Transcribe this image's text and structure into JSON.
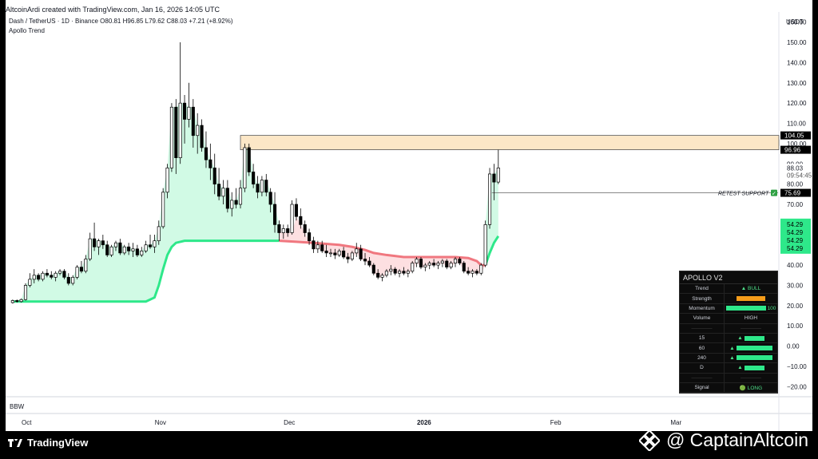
{
  "header": {
    "attribution": "AltcoinArdi created with TradingView.com, Jan 16, 2026 14:05 UTC",
    "symbol_line": "Dash / TetherUS · 1D · Binance",
    "ohlc": "O80.81 H96.85 L79.62 C88.03 +7.21 (+8.92%)",
    "indicator": "Apollo Trend",
    "lower_pane": "BBW"
  },
  "footer": {
    "brand": "TradingView",
    "watermark": "@ CaptainAltcoin"
  },
  "annotations": {
    "retest": "RETEST SUPPORT",
    "check": "✓"
  },
  "price_badges": {
    "zone_top": "104.05",
    "zone_bottom": "96.96",
    "current_price": "88.03",
    "countdown": "09:54:45",
    "support": "75.69",
    "trend_level": "54.29"
  },
  "apollo": {
    "title": "APOLLO V2",
    "rows": [
      {
        "label": "Trend",
        "value": "▲ BULL"
      },
      {
        "label": "Strength",
        "value": "",
        "bar_color": "#f59c1a",
        "bar_fraction": 0.72
      },
      {
        "label": "Momentum",
        "value": "100",
        "bar_color": "#2ee88a",
        "bar_fraction": 1.0
      },
      {
        "label": "Volume",
        "value": "HIGH"
      },
      {
        "label": "",
        "value": ""
      },
      {
        "label": "15",
        "value": "▲",
        "bar_color": "#2ee88a",
        "bar_fraction": 0.5
      },
      {
        "label": "60",
        "value": "▲",
        "bar_color": "#2ee88a",
        "bar_fraction": 0.9
      },
      {
        "label": "240",
        "value": "▲",
        "bar_color": "#2ee88a",
        "bar_fraction": 0.9
      },
      {
        "label": "D",
        "value": "▲",
        "bar_color": "#2ee88a",
        "bar_fraction": 0.5
      },
      {
        "label": "",
        "value": ""
      },
      {
        "label": "Signal",
        "value": "🟢 LONG"
      }
    ]
  },
  "chart_data": {
    "type": "candlestick",
    "currency": "USDT",
    "ylim": [
      -25,
      165
    ],
    "y_ticks": [
      160,
      150,
      140,
      130,
      120,
      110,
      100,
      90,
      80,
      70,
      60,
      50,
      40,
      30,
      20,
      10,
      0,
      -10,
      -20
    ],
    "y_tick_labels": [
      "160.00",
      "150.00",
      "140.00",
      "130.00",
      "120.00",
      "110.00",
      "100.00",
      "90.00",
      "80.00",
      "70.00",
      "60.00",
      "50.00",
      "40.00",
      "30.00",
      "20.00",
      "10.00",
      "0.00",
      "−10.00",
      "−20.00"
    ],
    "x_labels": [
      {
        "label": "Oct",
        "day": 0
      },
      {
        "label": "Nov",
        "day": 31
      },
      {
        "label": "Dec",
        "day": 61
      },
      {
        "label": "2026",
        "day": 92,
        "bold": true
      },
      {
        "label": "Feb",
        "day": 123
      },
      {
        "label": "Mar",
        "day": 151
      }
    ],
    "x_range_days": [
      -3,
      167
    ],
    "resistance_zone": [
      96.96,
      104.05
    ],
    "support_level": 75.69,
    "candles": [
      [
        -3,
        21.5,
        23,
        21,
        22.5
      ],
      [
        -2,
        22.5,
        23,
        21.5,
        22
      ],
      [
        -1,
        22,
        23.5,
        21.5,
        23
      ],
      [
        0,
        23,
        31,
        22.5,
        30
      ],
      [
        1,
        30,
        36,
        29,
        33
      ],
      [
        2,
        33,
        38,
        31,
        35
      ],
      [
        3,
        35,
        36,
        32,
        33
      ],
      [
        4,
        33,
        37,
        32,
        36
      ],
      [
        5,
        36,
        38,
        34,
        35
      ],
      [
        6,
        35,
        37,
        33,
        34
      ],
      [
        7,
        34,
        37,
        32,
        36
      ],
      [
        8,
        36,
        38,
        35,
        37
      ],
      [
        9,
        37,
        38,
        33,
        34
      ],
      [
        10,
        34,
        36,
        30,
        31
      ],
      [
        11,
        31,
        35,
        30,
        34
      ],
      [
        12,
        34,
        40,
        33,
        39
      ],
      [
        13,
        39,
        42,
        36,
        37
      ],
      [
        14,
        37,
        45,
        36,
        43
      ],
      [
        15,
        43,
        56,
        42,
        53
      ],
      [
        16,
        53,
        61,
        47,
        49
      ],
      [
        17,
        49,
        53,
        45,
        52
      ],
      [
        18,
        52,
        55,
        48,
        50
      ],
      [
        19,
        50,
        52,
        44,
        45
      ],
      [
        20,
        45,
        50,
        44,
        49
      ],
      [
        21,
        49,
        52,
        47,
        51
      ],
      [
        22,
        51,
        53,
        45,
        46
      ],
      [
        23,
        46,
        50,
        45,
        49
      ],
      [
        24,
        49,
        51,
        45,
        47
      ],
      [
        25,
        47,
        51,
        44,
        48
      ],
      [
        26,
        48,
        50,
        44,
        45
      ],
      [
        27,
        45,
        49,
        44,
        47
      ],
      [
        28,
        47,
        52,
        46,
        50
      ],
      [
        29,
        50,
        55,
        48,
        49
      ],
      [
        30,
        49,
        55,
        46,
        52
      ],
      [
        31,
        52,
        62,
        50,
        59
      ],
      [
        32,
        59,
        78,
        58,
        76
      ],
      [
        33,
        76,
        90,
        73,
        88
      ],
      [
        34,
        88,
        120,
        86,
        118
      ],
      [
        35,
        118,
        122,
        85,
        93
      ],
      [
        36,
        93,
        150,
        90,
        120
      ],
      [
        37,
        120,
        124,
        100,
        112
      ],
      [
        38,
        112,
        130,
        108,
        118
      ],
      [
        39,
        118,
        122,
        98,
        104
      ],
      [
        40,
        104,
        115,
        95,
        109
      ],
      [
        41,
        109,
        112,
        96,
        98
      ],
      [
        42,
        98,
        106,
        88,
        92
      ],
      [
        43,
        92,
        100,
        82,
        88
      ],
      [
        44,
        88,
        95,
        75,
        80
      ],
      [
        45,
        80,
        88,
        72,
        74
      ],
      [
        46,
        74,
        82,
        70,
        78
      ],
      [
        47,
        78,
        82,
        66,
        68
      ],
      [
        48,
        68,
        76,
        64,
        72
      ],
      [
        49,
        72,
        78,
        68,
        70
      ],
      [
        50,
        70,
        82,
        68,
        78
      ],
      [
        51,
        78,
        100,
        76,
        98
      ],
      [
        52,
        98,
        100,
        84,
        86
      ],
      [
        53,
        86,
        90,
        78,
        80
      ],
      [
        54,
        80,
        84,
        73,
        76
      ],
      [
        55,
        76,
        84,
        74,
        82
      ],
      [
        56,
        82,
        85,
        74,
        76
      ],
      [
        57,
        76,
        78,
        66,
        70
      ],
      [
        58,
        70,
        76,
        56,
        60
      ],
      [
        59,
        60,
        62,
        52,
        56
      ],
      [
        60,
        56,
        60,
        53,
        58
      ],
      [
        61,
        58,
        60,
        54,
        56
      ],
      [
        62,
        56,
        72,
        55,
        70
      ],
      [
        63,
        70,
        73,
        62,
        64
      ],
      [
        64,
        64,
        68,
        58,
        60
      ],
      [
        65,
        60,
        62,
        54,
        56
      ],
      [
        66,
        56,
        58,
        50,
        52
      ],
      [
        67,
        52,
        54,
        46,
        48
      ],
      [
        68,
        48,
        52,
        46,
        50
      ],
      [
        69,
        50,
        52,
        46,
        47
      ],
      [
        70,
        47,
        50,
        44,
        46
      ],
      [
        71,
        46,
        48,
        44,
        46
      ],
      [
        72,
        46,
        48,
        43,
        45
      ],
      [
        73,
        45,
        48,
        44,
        47
      ],
      [
        74,
        47,
        49,
        43,
        44
      ],
      [
        75,
        44,
        46,
        41,
        43
      ],
      [
        76,
        43,
        47,
        42,
        46
      ],
      [
        77,
        46,
        51,
        44,
        48
      ],
      [
        78,
        48,
        50,
        42,
        43
      ],
      [
        79,
        43,
        46,
        40,
        42
      ],
      [
        80,
        42,
        44,
        39,
        40
      ],
      [
        81,
        40,
        41,
        35,
        36
      ],
      [
        82,
        36,
        38,
        33,
        34
      ],
      [
        83,
        34,
        36,
        32,
        35
      ],
      [
        84,
        35,
        38,
        34,
        37
      ],
      [
        85,
        37,
        40,
        35,
        38
      ],
      [
        86,
        38,
        39,
        35,
        36
      ],
      [
        87,
        36,
        38,
        34,
        37
      ],
      [
        88,
        37,
        39,
        35,
        36
      ],
      [
        89,
        36,
        38,
        34,
        37
      ],
      [
        90,
        37,
        42,
        36,
        41
      ],
      [
        91,
        41,
        44,
        39,
        43
      ],
      [
        92,
        43,
        44,
        38,
        39
      ],
      [
        93,
        39,
        41,
        37,
        40
      ],
      [
        94,
        40,
        42,
        38,
        41
      ],
      [
        95,
        41,
        43,
        39,
        40
      ],
      [
        96,
        40,
        42,
        38,
        41
      ],
      [
        97,
        41,
        43,
        39,
        42
      ],
      [
        98,
        42,
        43,
        38,
        39
      ],
      [
        99,
        39,
        42,
        38,
        41
      ],
      [
        100,
        41,
        44,
        39,
        43
      ],
      [
        101,
        43,
        44,
        40,
        41
      ],
      [
        102,
        41,
        42,
        36,
        37
      ],
      [
        103,
        37,
        39,
        35,
        36
      ],
      [
        104,
        36,
        38,
        34,
        37
      ],
      [
        105,
        37,
        38,
        35,
        36
      ],
      [
        106,
        36,
        41,
        35,
        40
      ],
      [
        107,
        40,
        62,
        39,
        60
      ],
      [
        108,
        60,
        88,
        58,
        85
      ],
      [
        109,
        85,
        90,
        72,
        81
      ],
      [
        110,
        81,
        97,
        80,
        88
      ]
    ],
    "apollo_trend_line": [
      [
        -3,
        22
      ],
      [
        28,
        22
      ],
      [
        30,
        24
      ],
      [
        31,
        30
      ],
      [
        32,
        38
      ],
      [
        33,
        45
      ],
      [
        34,
        49
      ],
      [
        35,
        51
      ],
      [
        37,
        52
      ],
      [
        45,
        52
      ],
      [
        55,
        52
      ],
      [
        59,
        52
      ],
      [
        63,
        51.5
      ],
      [
        67,
        51
      ],
      [
        70,
        50.5
      ],
      [
        73,
        50
      ],
      [
        76,
        49
      ],
      [
        79,
        47.5
      ],
      [
        81,
        46
      ],
      [
        84,
        45
      ],
      [
        88,
        44
      ],
      [
        92,
        44
      ],
      [
        96,
        44
      ],
      [
        100,
        44
      ],
      [
        103,
        43.5
      ],
      [
        105,
        42
      ],
      [
        106,
        40
      ],
      [
        107,
        40
      ],
      [
        108,
        46
      ],
      [
        109,
        51
      ],
      [
        110,
        54.29
      ]
    ],
    "trend_color_change_day": 59
  }
}
